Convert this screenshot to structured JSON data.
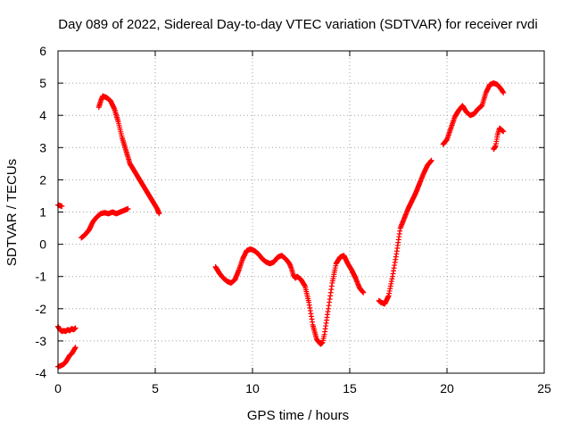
{
  "chart_data": {
    "type": "scatter",
    "title": "Day 089 of 2022, Sidereal Day-to-day VTEC variation (SDTVAR) for receiver rvdi",
    "xlabel": "GPS time / hours",
    "ylabel": "SDTVAR / TECUs",
    "xlim": [
      0,
      25
    ],
    "ylim": [
      -4,
      6
    ],
    "x_ticks": [
      0,
      5,
      10,
      15,
      20,
      25
    ],
    "y_ticks": [
      -4,
      -3,
      -2,
      -1,
      0,
      1,
      2,
      3,
      4,
      5,
      6
    ],
    "grid": true,
    "marker": "+",
    "marker_color": "#ff0000",
    "series": [
      {
        "segments": [
          {
            "x": [
              0.0,
              0.1,
              0.2
            ],
            "y": [
              1.22,
              1.2,
              1.18
            ]
          },
          {
            "x": [
              0.0,
              0.1,
              0.2,
              0.3,
              0.4,
              0.5,
              0.6,
              0.7,
              0.8,
              0.9
            ],
            "y": [
              -2.55,
              -2.65,
              -2.7,
              -2.68,
              -2.7,
              -2.65,
              -2.68,
              -2.62,
              -2.65,
              -2.6
            ]
          },
          {
            "x": [
              0.0,
              0.1,
              0.2,
              0.3,
              0.4,
              0.5,
              0.6,
              0.7,
              0.8,
              0.9
            ],
            "y": [
              -3.8,
              -3.78,
              -3.75,
              -3.72,
              -3.65,
              -3.55,
              -3.45,
              -3.4,
              -3.3,
              -3.2
            ]
          },
          {
            "x": [
              1.2,
              1.4,
              1.6,
              1.8,
              2.0,
              2.2,
              2.4,
              2.6,
              2.8,
              3.0,
              3.2,
              3.4,
              3.6
            ],
            "y": [
              0.2,
              0.3,
              0.45,
              0.7,
              0.85,
              0.95,
              0.98,
              0.95,
              1.0,
              0.95,
              1.0,
              1.05,
              1.1
            ]
          },
          {
            "x": [
              2.1,
              2.2,
              2.3,
              2.5,
              2.7,
              2.9,
              3.1,
              3.3,
              3.5,
              3.7,
              3.9,
              4.1,
              4.3,
              4.5,
              4.7,
              4.9,
              5.1,
              5.2
            ],
            "y": [
              4.25,
              4.45,
              4.6,
              4.55,
              4.45,
              4.2,
              3.8,
              3.3,
              2.9,
              2.5,
              2.3,
              2.1,
              1.9,
              1.7,
              1.5,
              1.3,
              1.1,
              0.95
            ]
          },
          {
            "x": [
              8.1,
              8.3,
              8.5,
              8.7,
              8.9,
              9.1,
              9.3,
              9.5,
              9.7,
              9.9,
              10.1,
              10.3,
              10.5,
              10.7,
              10.9,
              11.1,
              11.3,
              11.5,
              11.7,
              11.9,
              12.0,
              12.1,
              12.2,
              12.3,
              12.5,
              12.7,
              12.9,
              13.1,
              13.3,
              13.5,
              13.6,
              13.7,
              13.9,
              14.1,
              14.3,
              14.5,
              14.7,
              14.9,
              15.1,
              15.3,
              15.5,
              15.7
            ],
            "y": [
              -0.7,
              -0.9,
              -1.05,
              -1.15,
              -1.2,
              -1.1,
              -0.8,
              -0.45,
              -0.2,
              -0.15,
              -0.2,
              -0.3,
              -0.45,
              -0.55,
              -0.6,
              -0.55,
              -0.4,
              -0.35,
              -0.45,
              -0.6,
              -0.75,
              -0.95,
              -1.05,
              -1.0,
              -1.1,
              -1.3,
              -1.8,
              -2.5,
              -2.95,
              -3.1,
              -3.05,
              -2.8,
              -2.0,
              -1.2,
              -0.6,
              -0.4,
              -0.35,
              -0.6,
              -0.8,
              -1.05,
              -1.35,
              -1.5
            ]
          },
          {
            "x": [
              16.5,
              16.6,
              16.8,
              17.0,
              17.2,
              17.4,
              17.6,
              17.8,
              18.0,
              18.2,
              18.4,
              18.6,
              18.8,
              19.0,
              19.2
            ],
            "y": [
              -1.75,
              -1.8,
              -1.85,
              -1.6,
              -1.0,
              -0.3,
              0.5,
              0.8,
              1.1,
              1.35,
              1.6,
              1.9,
              2.2,
              2.45,
              2.6
            ]
          },
          {
            "x": [
              19.8,
              20.0,
              20.2,
              20.4,
              20.6,
              20.8,
              21.0,
              21.2,
              21.4,
              21.6,
              21.8,
              22.0,
              22.2,
              22.4,
              22.6,
              22.8,
              22.9
            ],
            "y": [
              3.1,
              3.25,
              3.6,
              3.95,
              4.15,
              4.3,
              4.1,
              4.0,
              4.05,
              4.2,
              4.3,
              4.7,
              4.95,
              5.0,
              4.95,
              4.8,
              4.7
            ]
          },
          {
            "x": [
              22.4,
              22.5,
              22.6,
              22.7,
              22.8,
              22.9
            ],
            "y": [
              2.95,
              3.05,
              3.4,
              3.6,
              3.55,
              3.5
            ]
          }
        ]
      }
    ]
  }
}
